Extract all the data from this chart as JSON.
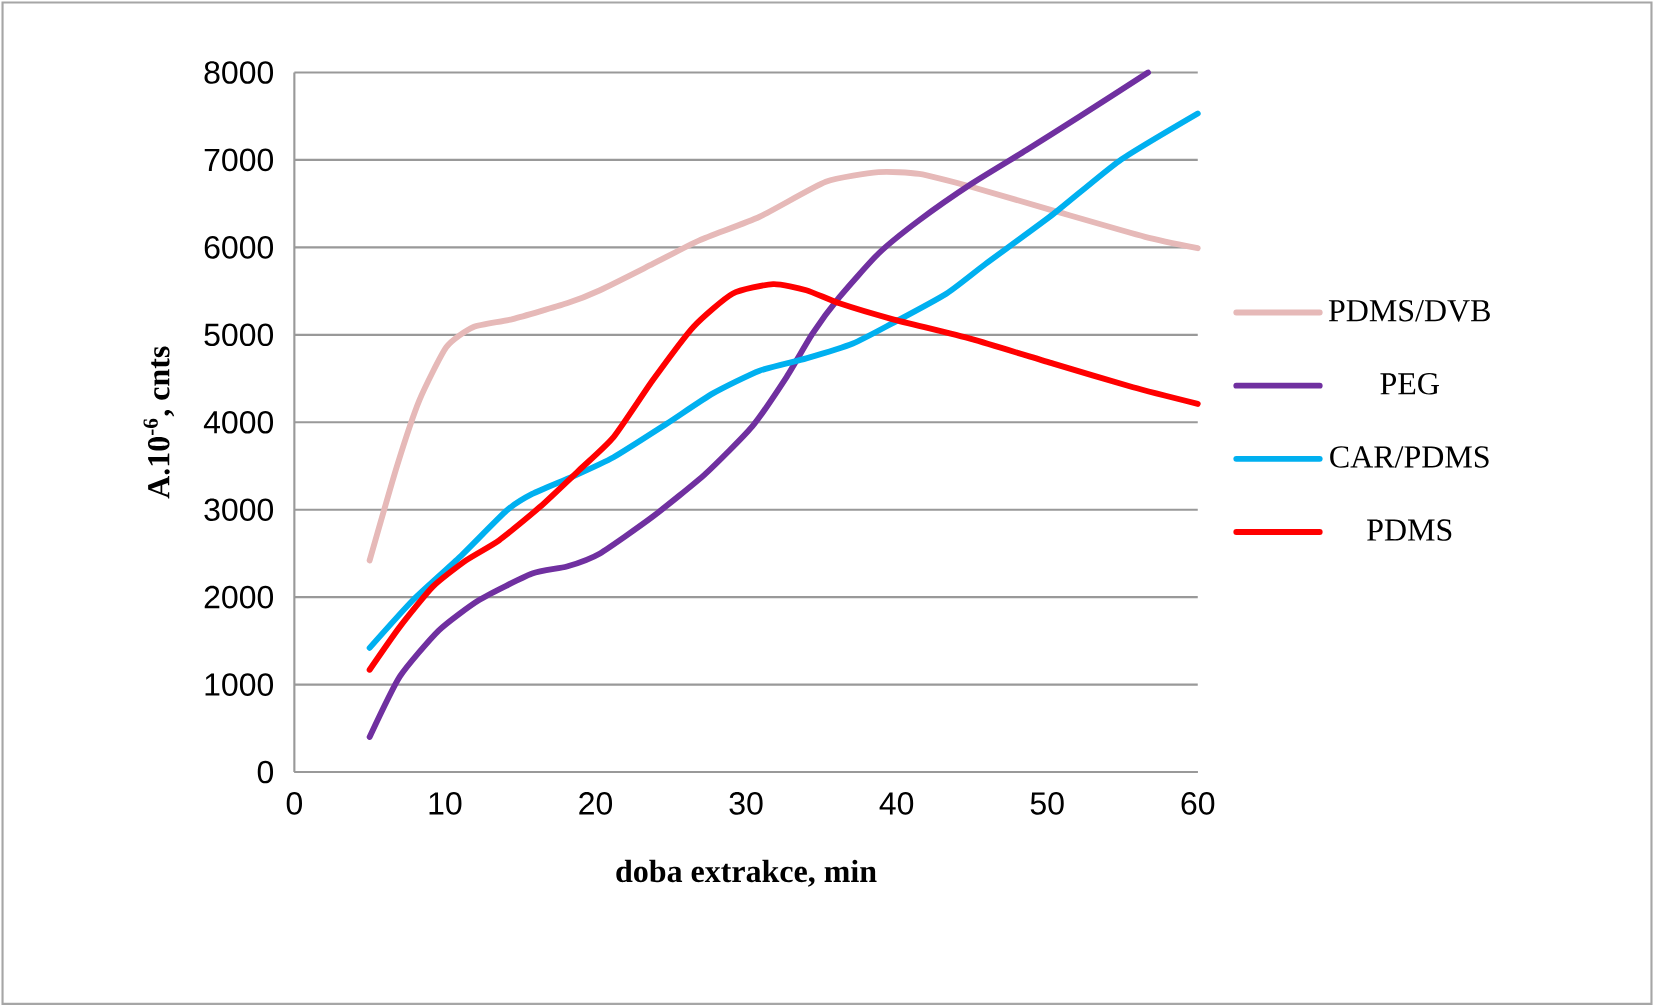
{
  "chart_data": {
    "type": "line",
    "xlabel": "doba extrakce, min",
    "ylabel": "A.10$^{-6}$, cnts",
    "xlim": [
      0,
      60
    ],
    "xticks": [
      0,
      10,
      20,
      30,
      40,
      50,
      60
    ],
    "ylim": [
      0,
      8000
    ],
    "yticks": [
      0,
      1000,
      2000,
      3000,
      4000,
      5000,
      6000,
      7000,
      8000
    ],
    "grid": "y",
    "legend": "right",
    "marker": "none",
    "line_style": "solid",
    "series": [
      {
        "name": "PDMS/DVB",
        "color": "#e6b9b8",
        "x": [
          5,
          6.8,
          8.3,
          10.1,
          11.9,
          14.5,
          18.1,
          20.3,
          23.8,
          26.9,
          30.9,
          35.3,
          38.8,
          41.5,
          45,
          50.4,
          56.5,
          60
        ],
        "values": [
          2420,
          3490,
          4250,
          4860,
          5090,
          5180,
          5360,
          5510,
          5810,
          6080,
          6350,
          6750,
          6860,
          6840,
          6690,
          6420,
          6120,
          5990
        ]
      },
      {
        "name": "PEG",
        "color": "#7030a0",
        "x": [
          5,
          7,
          9.6,
          12.3,
          15.8,
          18.1,
          20.3,
          23.8,
          27.3,
          30.4,
          32.7,
          34.4,
          36.2,
          38.8,
          41.5,
          45,
          48.6,
          52.1,
          56.7
        ],
        "values": [
          400,
          1090,
          1620,
          1970,
          2270,
          2350,
          2500,
          2920,
          3410,
          3950,
          4520,
          5010,
          5430,
          5930,
          6310,
          6730,
          7110,
          7490,
          8000
        ]
      },
      {
        "name": "CAR/PDMS",
        "color": "#00b0f0",
        "x": [
          5,
          7.9,
          11,
          14.1,
          15.8,
          18.5,
          21.2,
          24.7,
          27.8,
          30.9,
          34,
          37.1,
          39.7,
          43.3,
          45.9,
          50.4,
          54.8,
          60
        ],
        "values": [
          1420,
          1970,
          2460,
          2990,
          3180,
          3380,
          3600,
          3980,
          4330,
          4590,
          4730,
          4900,
          5130,
          5470,
          5810,
          6380,
          6990,
          7530
        ]
      },
      {
        "name": "PDMS",
        "color": "#ff0000",
        "x": [
          5,
          7,
          9.2,
          11.4,
          13.6,
          16.3,
          18.9,
          21.2,
          23.8,
          26.5,
          29.1,
          31.8,
          34,
          36.2,
          39.7,
          45,
          50.4,
          55.7,
          60
        ],
        "values": [
          1170,
          1660,
          2120,
          2420,
          2650,
          3030,
          3450,
          3830,
          4480,
          5090,
          5470,
          5580,
          5510,
          5360,
          5180,
          4950,
          4670,
          4400,
          4210
        ]
      }
    ]
  }
}
